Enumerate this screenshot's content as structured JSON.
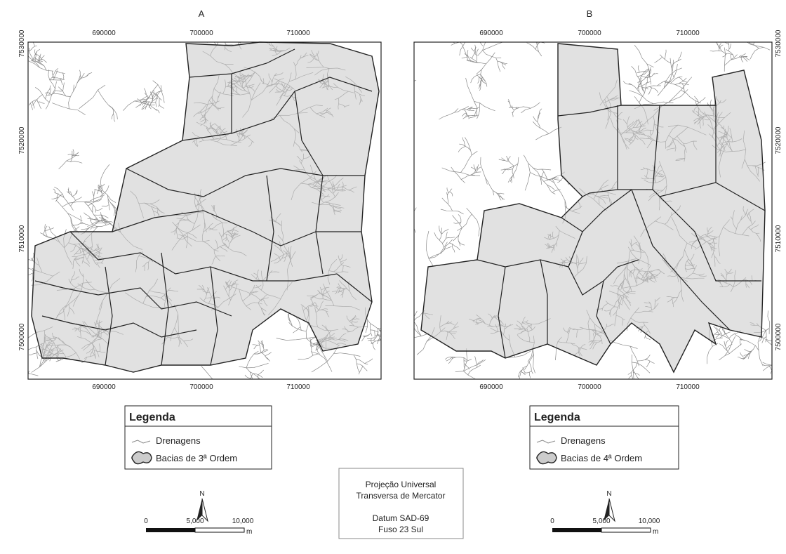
{
  "maps": [
    {
      "label": "A",
      "x_ticks": [
        "690000",
        "700000",
        "710000"
      ],
      "y_ticks": [
        "7530000",
        "7520000",
        "7510000",
        "7500000"
      ],
      "legend": {
        "title": "Legenda",
        "items": [
          "Drenagens",
          "Bacias de 3ª Ordem"
        ]
      },
      "north": "N",
      "scale": [
        "0",
        "5,000",
        "10,000",
        "m"
      ]
    },
    {
      "label": "B",
      "x_ticks": [
        "690000",
        "700000",
        "710000"
      ],
      "y_ticks": [
        "7530000",
        "7520000",
        "7510000",
        "7500000"
      ],
      "legend": {
        "title": "Legenda",
        "items": [
          "Drenagens",
          "Bacias de 4ª Ordem"
        ]
      },
      "north": "N",
      "scale": [
        "0",
        "5,000",
        "10,000",
        "m"
      ]
    }
  ],
  "projection": [
    "Projeção Universal",
    "Transversa de Mercator",
    "Datum SAD-69",
    "Fuso 23 Sul"
  ]
}
